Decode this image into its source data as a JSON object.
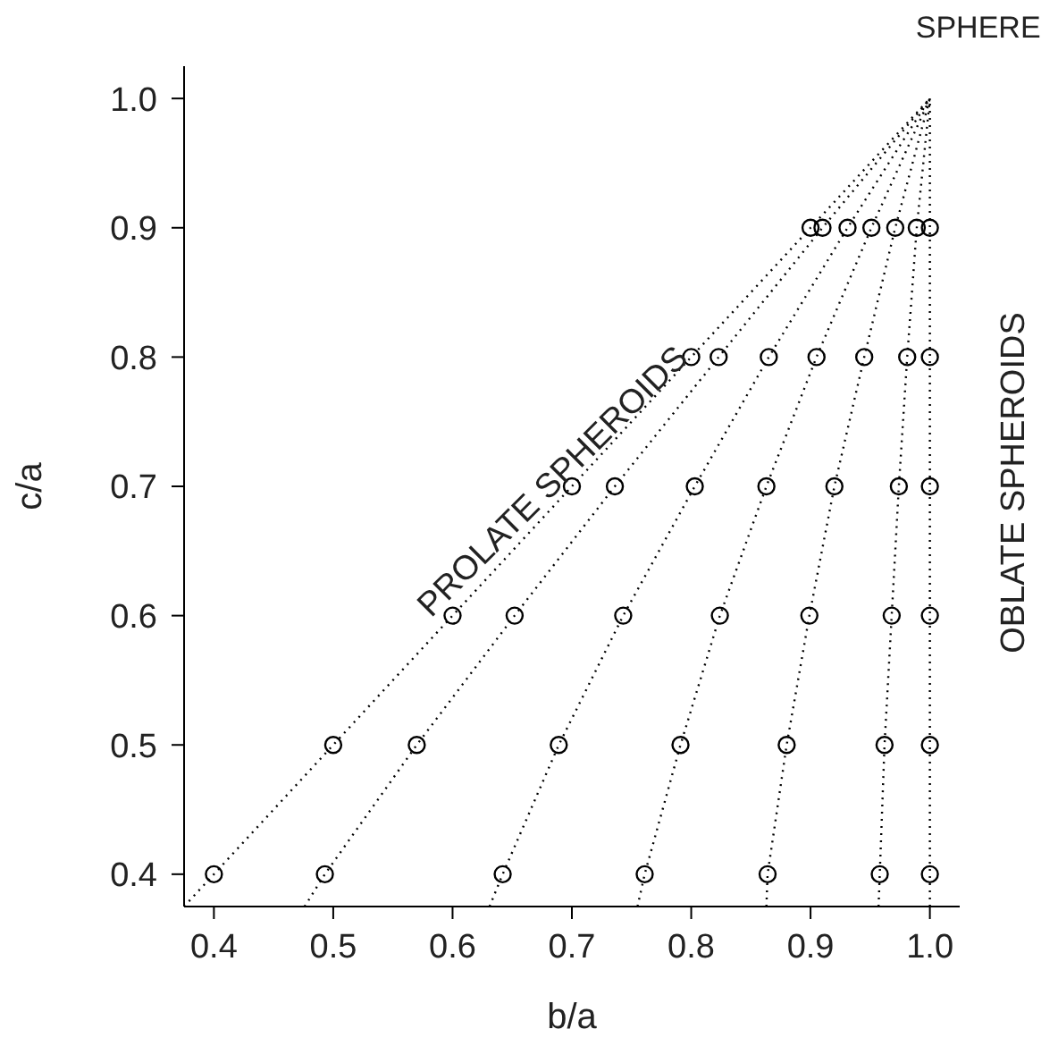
{
  "chart_data": {
    "type": "scatter",
    "xlabel": "b/a",
    "ylabel": "c/a",
    "xlim": [
      0.375,
      1.025
    ],
    "ylim": [
      0.375,
      1.025
    ],
    "xticks": [
      {
        "value": 0.4,
        "label": "0.4"
      },
      {
        "value": 0.5,
        "label": "0.5"
      },
      {
        "value": 0.6,
        "label": "0.6"
      },
      {
        "value": 0.7,
        "label": "0.7"
      },
      {
        "value": 0.8,
        "label": "0.8"
      },
      {
        "value": 0.9,
        "label": "0.9"
      },
      {
        "value": 1.0,
        "label": "1.0"
      }
    ],
    "yticks": [
      {
        "value": 0.4,
        "label": "0.4"
      },
      {
        "value": 0.5,
        "label": "0.5"
      },
      {
        "value": 0.6,
        "label": "0.6"
      },
      {
        "value": 0.7,
        "label": "0.7"
      },
      {
        "value": 0.8,
        "label": "0.8"
      },
      {
        "value": 0.9,
        "label": "0.9"
      },
      {
        "value": 1.0,
        "label": "1.0"
      }
    ],
    "grid": false,
    "annotations": [
      {
        "text": "SPHERE",
        "x": 1.0,
        "y": 1.0
      },
      "PROLATE SPHEROIDS",
      "OBLATE SPHEROIDS"
    ],
    "series": [
      {
        "type": "line",
        "color": "#000000",
        "line_style": "dotted",
        "marker": "none",
        "x": [
          0.375,
          0.4,
          0.5,
          0.6,
          0.7,
          0.8,
          0.9,
          1.0
        ],
        "values": [
          0.375,
          0.4,
          0.5,
          0.6,
          0.7,
          0.8,
          0.9,
          1.0
        ]
      },
      {
        "type": "line",
        "color": "#000000",
        "line_style": "dotted",
        "marker": "none",
        "x": [
          0.476,
          0.493,
          0.57,
          0.652,
          0.736,
          0.823,
          0.91,
          1.0
        ],
        "values": [
          0.375,
          0.4,
          0.5,
          0.6,
          0.7,
          0.8,
          0.9,
          1.0
        ]
      },
      {
        "type": "line",
        "color": "#000000",
        "line_style": "dotted",
        "marker": "none",
        "x": [
          0.631,
          0.642,
          0.689,
          0.743,
          0.803,
          0.865,
          0.931,
          1.0
        ],
        "values": [
          0.375,
          0.4,
          0.5,
          0.6,
          0.7,
          0.8,
          0.9,
          1.0
        ]
      },
      {
        "type": "line",
        "color": "#000000",
        "line_style": "dotted",
        "marker": "none",
        "x": [
          0.755,
          0.761,
          0.791,
          0.824,
          0.863,
          0.905,
          0.951,
          1.0
        ],
        "values": [
          0.375,
          0.4,
          0.5,
          0.6,
          0.7,
          0.8,
          0.9,
          1.0
        ]
      },
      {
        "type": "line",
        "color": "#000000",
        "line_style": "dotted",
        "marker": "none",
        "x": [
          0.863,
          0.864,
          0.88,
          0.899,
          0.92,
          0.945,
          0.971,
          1.0
        ],
        "values": [
          0.375,
          0.4,
          0.5,
          0.6,
          0.7,
          0.8,
          0.9,
          1.0
        ]
      },
      {
        "type": "line",
        "color": "#000000",
        "line_style": "dotted",
        "marker": "none",
        "x": [
          0.957,
          0.958,
          0.962,
          0.968,
          0.974,
          0.981,
          0.989,
          1.0
        ],
        "values": [
          0.375,
          0.4,
          0.5,
          0.6,
          0.7,
          0.8,
          0.9,
          1.0
        ]
      },
      {
        "type": "line",
        "color": "#000000",
        "line_style": "dotted",
        "marker": "none",
        "x": [
          1.0,
          1.0,
          1.0,
          1.0,
          1.0,
          1.0,
          1.0,
          1.0
        ],
        "values": [
          0.375,
          0.4,
          0.5,
          0.6,
          0.7,
          0.8,
          0.9,
          1.0
        ]
      },
      {
        "color": "#000000",
        "marker": "circle",
        "x": [
          0.4,
          0.493,
          0.642,
          0.761,
          0.864,
          0.958,
          1.0,
          0.5,
          0.57,
          0.689,
          0.791,
          0.88,
          0.962,
          1.0,
          0.6,
          0.652,
          0.743,
          0.824,
          0.899,
          0.968,
          1.0,
          0.7,
          0.736,
          0.803,
          0.863,
          0.92,
          0.974,
          1.0,
          0.8,
          0.823,
          0.865,
          0.905,
          0.945,
          0.981,
          1.0,
          0.9,
          0.91,
          0.931,
          0.951,
          0.971,
          0.989,
          1.0
        ],
        "values": [
          0.4,
          0.4,
          0.4,
          0.4,
          0.4,
          0.4,
          0.4,
          0.5,
          0.5,
          0.5,
          0.5,
          0.5,
          0.5,
          0.5,
          0.6,
          0.6,
          0.6,
          0.6,
          0.6,
          0.6,
          0.6,
          0.7,
          0.7,
          0.7,
          0.7,
          0.7,
          0.7,
          0.7,
          0.8,
          0.8,
          0.8,
          0.8,
          0.8,
          0.8,
          0.8,
          0.9,
          0.9,
          0.9,
          0.9,
          0.9,
          0.9,
          0.9
        ]
      }
    ]
  }
}
